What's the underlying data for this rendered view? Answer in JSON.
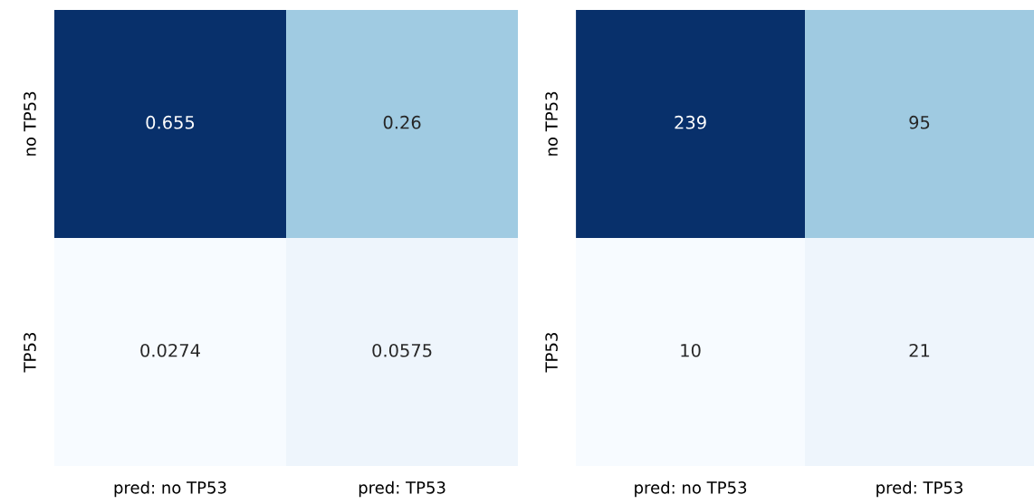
{
  "chart_data": [
    {
      "type": "heatmap",
      "categories": [
        "pred: no TP53",
        "pred: TP53"
      ],
      "y_categories": [
        "no TP53",
        "TP53"
      ],
      "cells": [
        [
          0.655,
          0.26
        ],
        [
          0.0274,
          0.0575
        ]
      ],
      "data_labels": true
    },
    {
      "type": "heatmap",
      "categories": [
        "pred: no TP53",
        "pred: TP53"
      ],
      "y_categories": [
        "no TP53",
        "TP53"
      ],
      "cells": [
        [
          239,
          95
        ],
        [
          10,
          21
        ]
      ],
      "data_labels": true
    }
  ]
}
